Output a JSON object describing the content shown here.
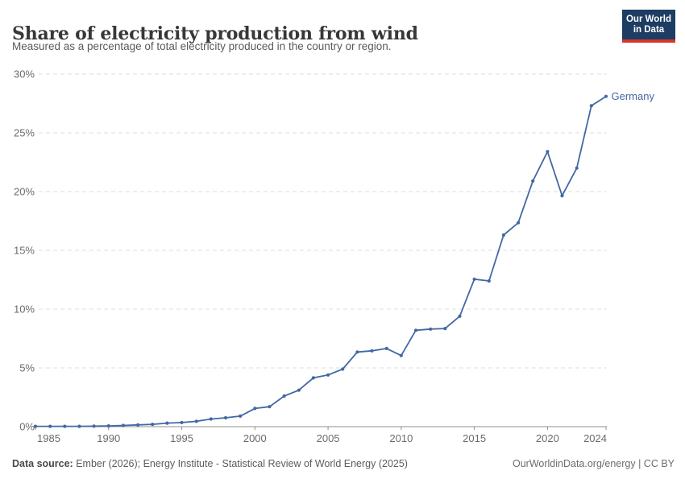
{
  "header": {
    "title": "Share of electricity production from wind",
    "subtitle": "Measured as a percentage of total electricity produced in the country or region.",
    "logo": {
      "line1": "Our World",
      "line2": "in Data",
      "bg_color": "#1d3d63",
      "accent_color": "#d5372d"
    }
  },
  "chart_data": {
    "type": "line",
    "title": "Share of electricity production from wind",
    "xlabel": "",
    "ylabel": "",
    "grid": "horizontal-dashed",
    "legend_position": "end-of-line-label",
    "ylim": [
      0,
      30
    ],
    "xlim": [
      1985,
      2024
    ],
    "y_ticks": [
      0,
      5,
      10,
      15,
      20,
      25,
      30
    ],
    "y_tick_suffix": "%",
    "x_ticks": [
      1985,
      1990,
      1995,
      2000,
      2005,
      2010,
      2015,
      2020,
      2024
    ],
    "categories": [
      1985,
      1986,
      1987,
      1988,
      1989,
      1990,
      1991,
      1992,
      1993,
      1994,
      1995,
      1996,
      1997,
      1998,
      1999,
      2000,
      2001,
      2002,
      2003,
      2004,
      2005,
      2006,
      2007,
      2008,
      2009,
      2010,
      2011,
      2012,
      2013,
      2014,
      2015,
      2016,
      2017,
      2018,
      2019,
      2020,
      2021,
      2022,
      2023,
      2024
    ],
    "series": [
      {
        "name": "Germany",
        "color": "#4268a3",
        "values": [
          0.03,
          0.03,
          0.03,
          0.03,
          0.04,
          0.06,
          0.1,
          0.15,
          0.2,
          0.3,
          0.35,
          0.45,
          0.65,
          0.75,
          0.9,
          1.55,
          1.7,
          2.6,
          3.1,
          4.15,
          4.4,
          4.9,
          6.35,
          6.45,
          6.65,
          6.05,
          8.2,
          8.3,
          8.35,
          9.4,
          12.55,
          12.4,
          16.3,
          17.35,
          20.9,
          23.4,
          19.65,
          22.0,
          27.3,
          28.1
        ]
      }
    ],
    "style": {
      "grid_color": "#dcdcdc",
      "axis_color": "#8f8f8f",
      "tick_label_color": "#6b6b6b"
    }
  },
  "footer": {
    "source_label": "Data source:",
    "source_text": " Ember (2026); Energy Institute - Statistical Review of World Energy (2025)",
    "rights": "OurWorldinData.org/energy | CC BY"
  }
}
